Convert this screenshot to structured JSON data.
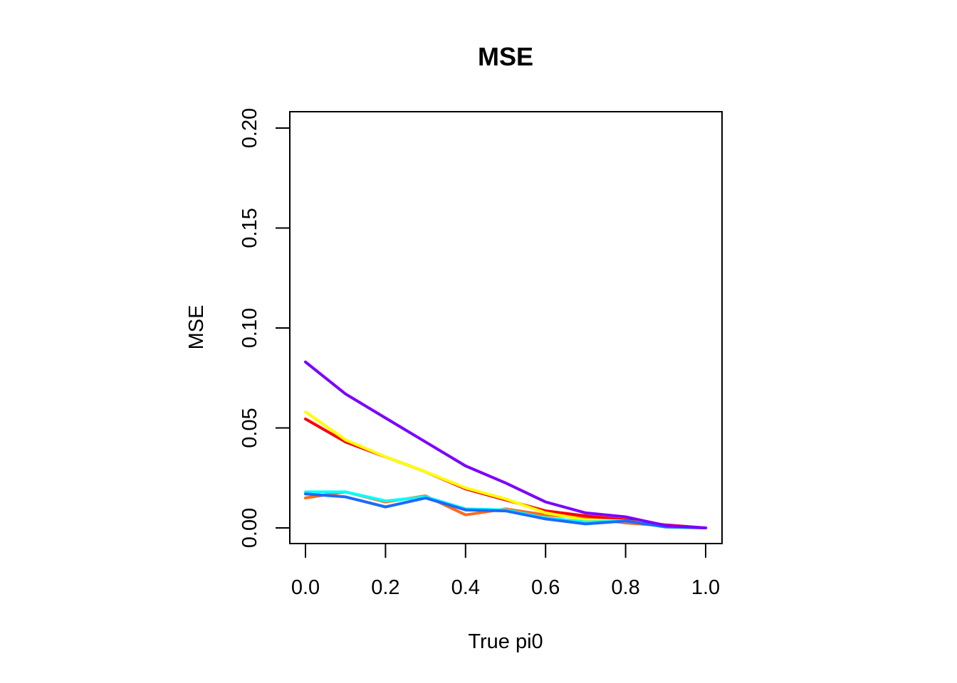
{
  "chart_data": {
    "type": "line",
    "title": "MSE",
    "xlabel": "True pi0",
    "ylabel": "MSE",
    "xlim": [
      0.0,
      1.0
    ],
    "ylim": [
      0.0,
      0.2
    ],
    "x_ticks": [
      "0.0",
      "0.2",
      "0.4",
      "0.6",
      "0.8",
      "1.0"
    ],
    "y_ticks": [
      "0.00",
      "0.05",
      "0.10",
      "0.15",
      "0.20"
    ],
    "legend": "none",
    "grid": false,
    "x": [
      0.0,
      0.1,
      0.2,
      0.3,
      0.4,
      0.5,
      0.6,
      0.7,
      0.8,
      0.9,
      1.0
    ],
    "series": [
      {
        "color": "#ff6a1a",
        "values": [
          0.015,
          0.018,
          0.013,
          0.016,
          0.0065,
          0.0095,
          0.0065,
          0.005,
          0.0025,
          0.001,
          0.0
        ]
      },
      {
        "color": "#ff0000",
        "values": [
          0.0545,
          0.043,
          0.0355,
          0.028,
          0.0195,
          0.014,
          0.0085,
          0.006,
          0.004,
          0.0015,
          0.0
        ]
      },
      {
        "color": "#ffff00",
        "values": [
          0.058,
          0.044,
          0.0355,
          0.028,
          0.02,
          0.0145,
          0.0075,
          0.004,
          0.0035,
          0.001,
          0.0
        ]
      },
      {
        "color": "#00ffff",
        "values": [
          0.018,
          0.018,
          0.0135,
          0.0155,
          0.0095,
          0.009,
          0.005,
          0.003,
          0.0035,
          0.0005,
          0.0
        ]
      },
      {
        "color": "#1a6aff",
        "values": [
          0.017,
          0.0155,
          0.0105,
          0.015,
          0.009,
          0.0085,
          0.0045,
          0.002,
          0.0035,
          0.0005,
          0.0
        ]
      },
      {
        "color": "#7b00ff",
        "values": [
          0.083,
          0.067,
          0.055,
          0.043,
          0.031,
          0.0225,
          0.013,
          0.0075,
          0.0055,
          0.0012,
          0.0
        ]
      }
    ]
  }
}
